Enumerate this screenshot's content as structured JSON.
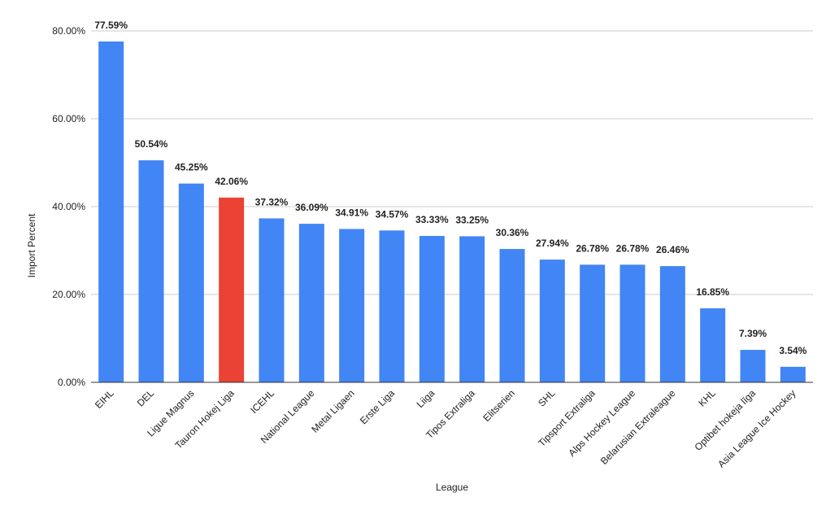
{
  "chart_data": {
    "type": "bar",
    "title": "",
    "xlabel": "League",
    "ylabel": "Import Percent",
    "ylim": [
      0,
      80
    ],
    "yticks": [
      0,
      20,
      40,
      60,
      80
    ],
    "ytick_labels": [
      "0.00%",
      "20.00%",
      "40.00%",
      "60.00%",
      "80.00%"
    ],
    "grid": true,
    "legend": "none",
    "default_color": "#4285f4",
    "highlight_color": "#ea4335",
    "categories": [
      "EIHL",
      "DEL",
      "Ligue Magnus",
      "Tauron Hokej Liga",
      "ICEHL",
      "National League",
      "Metal Ligaen",
      "Erste Liga",
      "Liiga",
      "Tipos Extraliga",
      "Elitserien",
      "SHL",
      "Tipsport Extraliga",
      "Alps Hockey League",
      "Belarusian Extraleague",
      "KHL",
      "Optibet hokeja līga",
      "Asia League Ice Hockey"
    ],
    "values": [
      77.59,
      50.54,
      45.25,
      42.06,
      37.32,
      36.09,
      34.91,
      34.57,
      33.33,
      33.25,
      30.36,
      27.94,
      26.78,
      26.78,
      26.46,
      16.85,
      7.39,
      3.54
    ],
    "data_labels": [
      "77.59%",
      "50.54%",
      "45.25%",
      "42.06%",
      "37.32%",
      "36.09%",
      "34.91%",
      "34.57%",
      "33.33%",
      "33.25%",
      "30.36%",
      "27.94%",
      "26.78%",
      "26.78%",
      "26.46%",
      "16.85%",
      "7.39%",
      "3.54%"
    ],
    "colors": [
      "#4285f4",
      "#4285f4",
      "#4285f4",
      "#ea4335",
      "#4285f4",
      "#4285f4",
      "#4285f4",
      "#4285f4",
      "#4285f4",
      "#4285f4",
      "#4285f4",
      "#4285f4",
      "#4285f4",
      "#4285f4",
      "#4285f4",
      "#4285f4",
      "#4285f4",
      "#4285f4"
    ]
  }
}
